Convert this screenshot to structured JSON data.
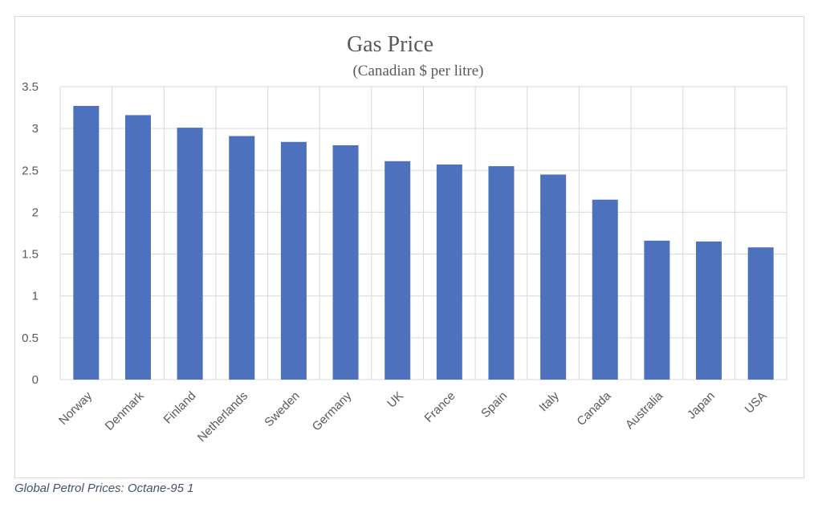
{
  "caption": "Global Petrol Prices: Octane-95 1",
  "colors": {
    "bar": "#4e71be",
    "grid": "#d9d9d9",
    "text": "#595959",
    "caption": "#44546a"
  },
  "chart_data": {
    "type": "bar",
    "title": "Gas Price",
    "subtitle": "(Canadian $ per litre)",
    "xlabel": "",
    "ylabel": "",
    "ylim": [
      0,
      3.5
    ],
    "yticks": [
      "0",
      "0.5",
      "1",
      "1.5",
      "2",
      "2.5",
      "3",
      "3.5"
    ],
    "grid": true,
    "categories": [
      "Norway",
      "Denmark",
      "Finland",
      "Netherlands",
      "Sweden",
      "Germany",
      "UK",
      "France",
      "Spain",
      "Italy",
      "Canada",
      "Australia",
      "Japan",
      "USA"
    ],
    "values": [
      3.27,
      3.16,
      3.01,
      2.91,
      2.84,
      2.8,
      2.61,
      2.57,
      2.55,
      2.45,
      2.15,
      1.66,
      1.65,
      1.58
    ]
  }
}
